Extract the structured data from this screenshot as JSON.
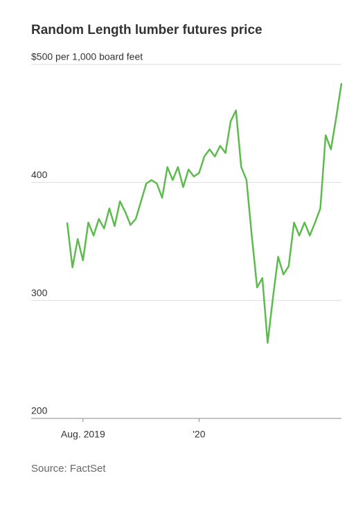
{
  "chart_data": {
    "type": "line",
    "title": "Random Length lumber futures price",
    "source": "Source: FactSet",
    "categories": [
      null,
      null,
      null,
      "Aug. 2019",
      null,
      null,
      null,
      null,
      null,
      null,
      null,
      null,
      null,
      null,
      null,
      null,
      null,
      null,
      null,
      null,
      null,
      null,
      null,
      null,
      null,
      "'20",
      null,
      null,
      null,
      null,
      null,
      null,
      null,
      null,
      null,
      null,
      null,
      null,
      null,
      null,
      null,
      null,
      null,
      null,
      null,
      null,
      null,
      null,
      null,
      null,
      null,
      null,
      null
    ],
    "series": [
      {
        "name": "Lumber futures",
        "color": "#5dbb4e",
        "values": [
          366,
          328,
          352,
          334,
          366,
          355,
          369,
          361,
          378,
          363,
          384,
          375,
          364,
          369,
          384,
          399,
          402,
          399,
          387,
          413,
          402,
          413,
          396,
          411,
          405,
          408,
          422,
          428,
          422,
          431,
          425,
          452,
          461,
          413,
          402,
          355,
          311,
          319,
          264,
          302,
          337,
          322,
          329,
          366,
          355,
          366,
          355,
          366,
          378,
          440,
          428,
          455,
          484
        ]
      }
    ],
    "ylim": [
      200,
      500
    ],
    "yticks": [
      200,
      300,
      400,
      {
        "value": 500,
        "label": "$500 per 1,000 board feet"
      }
    ],
    "grid": true
  }
}
